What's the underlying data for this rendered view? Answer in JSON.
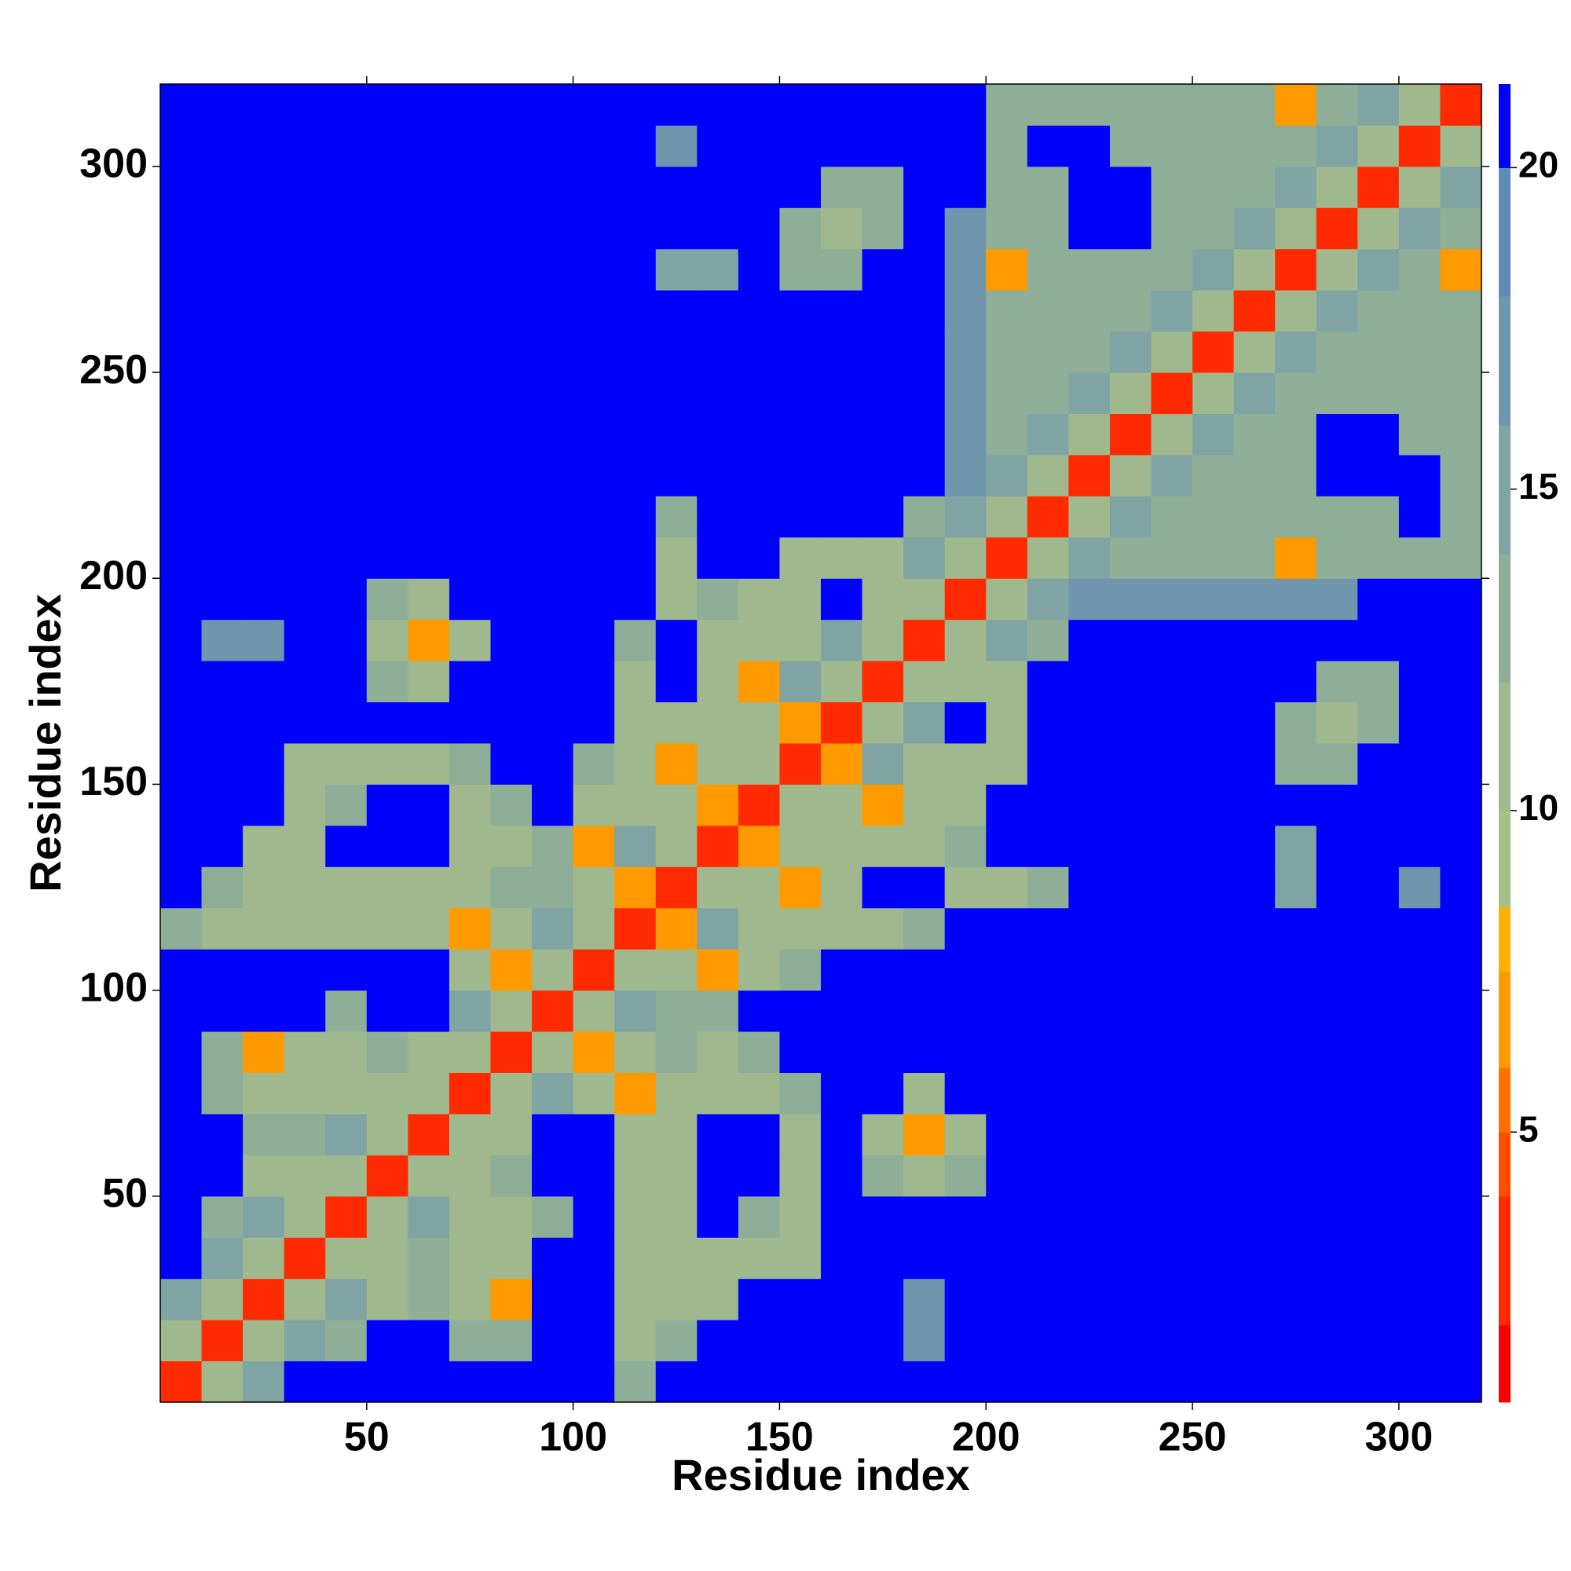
{
  "chart_data": {
    "type": "heatmap",
    "x_label": "Residue index",
    "y_label": "Residue index",
    "x": [
      5,
      15,
      25,
      35,
      45,
      55,
      65,
      75,
      85,
      95,
      105,
      115,
      125,
      135,
      145,
      155,
      165,
      175,
      185,
      195,
      205,
      215,
      225,
      235,
      245,
      255,
      265,
      275,
      285,
      295,
      305,
      315
    ],
    "y": [
      5,
      15,
      25,
      35,
      45,
      55,
      65,
      75,
      85,
      95,
      105,
      115,
      125,
      135,
      145,
      155,
      165,
      175,
      185,
      195,
      205,
      215,
      225,
      235,
      245,
      255,
      265,
      275,
      285,
      295,
      305,
      315
    ],
    "xlim": [
      0,
      320
    ],
    "ylim": [
      0,
      320
    ],
    "xticks": [
      50,
      100,
      150,
      200,
      250,
      300
    ],
    "yticks": [
      50,
      100,
      150,
      200,
      250,
      300
    ],
    "clim": [
      0.8,
      21.3
    ],
    "cticks": [
      5,
      10,
      15,
      20
    ],
    "colorscale": [
      [
        2,
        "#ff0000"
      ],
      [
        4,
        "#ff2a00"
      ],
      [
        5,
        "#ff4d00"
      ],
      [
        6,
        "#ff7000"
      ],
      [
        7.5,
        "#ff9a00"
      ],
      [
        8.5,
        "#ffb000"
      ],
      [
        10,
        "#a8bf8a"
      ],
      [
        12,
        "#a0b88e"
      ],
      [
        14,
        "#8fae98"
      ],
      [
        16,
        "#80a3a4"
      ],
      [
        18,
        "#7096ad"
      ],
      [
        20,
        "#5f8ab6"
      ],
      [
        21.3,
        "#0000ff"
      ]
    ],
    "values": [
      [
        3,
        11,
        16,
        21,
        21,
        21,
        21,
        21,
        21,
        21,
        21,
        14,
        21,
        21,
        21,
        21,
        21,
        21,
        21,
        21,
        21,
        21,
        21,
        21,
        21,
        21,
        21,
        21,
        21,
        21,
        21,
        21
      ],
      [
        11,
        3,
        11,
        16,
        14,
        21,
        21,
        14,
        14,
        21,
        21,
        12,
        14,
        21,
        21,
        21,
        21,
        21,
        18,
        21,
        21,
        21,
        21,
        21,
        21,
        21,
        21,
        21,
        21,
        21,
        21,
        21
      ],
      [
        16,
        11,
        3,
        11,
        16,
        12,
        14,
        12,
        7,
        21,
        21,
        12,
        12,
        12,
        21,
        21,
        21,
        21,
        18,
        21,
        21,
        21,
        21,
        21,
        21,
        21,
        21,
        21,
        21,
        21,
        21,
        21
      ],
      [
        21,
        16,
        11,
        3,
        11,
        12,
        14,
        12,
        12,
        21,
        21,
        12,
        12,
        12,
        12,
        12,
        21,
        21,
        21,
        21,
        21,
        21,
        21,
        21,
        21,
        21,
        21,
        21,
        21,
        21,
        21,
        21
      ],
      [
        21,
        14,
        16,
        11,
        3,
        11,
        16,
        12,
        12,
        14,
        21,
        12,
        12,
        21,
        14,
        12,
        21,
        21,
        21,
        21,
        21,
        21,
        21,
        21,
        21,
        21,
        21,
        21,
        21,
        21,
        21,
        21
      ],
      [
        21,
        21,
        12,
        12,
        11,
        3,
        11,
        12,
        14,
        21,
        21,
        12,
        12,
        21,
        21,
        12,
        21,
        14,
        12,
        14,
        21,
        21,
        21,
        21,
        21,
        21,
        21,
        21,
        21,
        21,
        21,
        21
      ],
      [
        21,
        21,
        14,
        14,
        16,
        11,
        3,
        11,
        12,
        21,
        21,
        12,
        12,
        21,
        21,
        12,
        21,
        12,
        7,
        12,
        21,
        21,
        21,
        21,
        21,
        21,
        21,
        21,
        21,
        21,
        21,
        21
      ],
      [
        21,
        14,
        12,
        12,
        12,
        12,
        11,
        3,
        11,
        16,
        12,
        7,
        12,
        12,
        12,
        14,
        21,
        21,
        12,
        21,
        21,
        21,
        21,
        21,
        21,
        21,
        21,
        21,
        21,
        21,
        21,
        21
      ],
      [
        21,
        14,
        7,
        12,
        12,
        14,
        12,
        11,
        3,
        11,
        7,
        12,
        14,
        12,
        14,
        21,
        21,
        21,
        21,
        21,
        21,
        21,
        21,
        21,
        21,
        21,
        21,
        21,
        21,
        21,
        21,
        21
      ],
      [
        21,
        21,
        21,
        21,
        14,
        21,
        21,
        16,
        11,
        3,
        11,
        16,
        14,
        14,
        21,
        21,
        21,
        21,
        21,
        21,
        21,
        21,
        21,
        21,
        21,
        21,
        21,
        21,
        21,
        21,
        21,
        21
      ],
      [
        21,
        21,
        21,
        21,
        21,
        21,
        21,
        12,
        7,
        11,
        3,
        11,
        12,
        7,
        12,
        14,
        21,
        21,
        21,
        21,
        21,
        21,
        21,
        21,
        21,
        21,
        21,
        21,
        21,
        21,
        21,
        21
      ],
      [
        14,
        12,
        12,
        12,
        12,
        12,
        12,
        7,
        12,
        16,
        11,
        3,
        7,
        16,
        12,
        12,
        12,
        12,
        14,
        21,
        21,
        21,
        21,
        21,
        21,
        21,
        21,
        21,
        21,
        21,
        21,
        21
      ],
      [
        21,
        14,
        12,
        12,
        12,
        12,
        12,
        12,
        14,
        14,
        12,
        7,
        3,
        11,
        12,
        7,
        12,
        21,
        21,
        12,
        12,
        14,
        21,
        21,
        21,
        21,
        21,
        16,
        21,
        21,
        18,
        21
      ],
      [
        21,
        21,
        12,
        12,
        21,
        21,
        21,
        12,
        12,
        14,
        7,
        16,
        11,
        3,
        7,
        12,
        12,
        12,
        12,
        14,
        21,
        21,
        21,
        21,
        21,
        21,
        21,
        16,
        21,
        21,
        21,
        21
      ],
      [
        21,
        21,
        21,
        12,
        14,
        21,
        21,
        12,
        14,
        21,
        12,
        12,
        12,
        7,
        3,
        11,
        12,
        7,
        12,
        12,
        21,
        21,
        21,
        21,
        21,
        21,
        21,
        21,
        21,
        21,
        21,
        21
      ],
      [
        21,
        21,
        21,
        12,
        12,
        12,
        12,
        14,
        21,
        21,
        14,
        12,
        7,
        12,
        11,
        3,
        7,
        16,
        12,
        12,
        12,
        21,
        21,
        21,
        21,
        21,
        21,
        14,
        14,
        21,
        21,
        21
      ],
      [
        21,
        21,
        21,
        21,
        21,
        21,
        21,
        21,
        21,
        21,
        21,
        12,
        12,
        12,
        12,
        7,
        3,
        11,
        16,
        21,
        12,
        21,
        21,
        21,
        21,
        21,
        21,
        14,
        12,
        14,
        21,
        21
      ],
      [
        21,
        21,
        21,
        21,
        21,
        14,
        12,
        21,
        21,
        21,
        21,
        12,
        21,
        12,
        7,
        16,
        11,
        3,
        11,
        12,
        12,
        21,
        21,
        21,
        21,
        21,
        21,
        21,
        14,
        14,
        21,
        21
      ],
      [
        21,
        18,
        18,
        21,
        21,
        12,
        7,
        12,
        21,
        21,
        21,
        14,
        21,
        12,
        12,
        12,
        16,
        11,
        3,
        11,
        16,
        14,
        21,
        21,
        21,
        21,
        21,
        21,
        21,
        21,
        21,
        21
      ],
      [
        21,
        21,
        21,
        21,
        21,
        14,
        12,
        21,
        21,
        21,
        21,
        21,
        12,
        14,
        12,
        12,
        21,
        12,
        11,
        3,
        11,
        16,
        18,
        18,
        18,
        18,
        18,
        18,
        18,
        21,
        21,
        21
      ],
      [
        21,
        21,
        21,
        21,
        21,
        21,
        21,
        21,
        21,
        21,
        21,
        21,
        12,
        21,
        21,
        12,
        12,
        12,
        16,
        11,
        3,
        11,
        16,
        14,
        14,
        14,
        14,
        7,
        14,
        14,
        14,
        14
      ],
      [
        21,
        21,
        21,
        21,
        21,
        21,
        21,
        21,
        21,
        21,
        21,
        21,
        14,
        21,
        21,
        21,
        21,
        21,
        14,
        16,
        11,
        3,
        11,
        16,
        14,
        14,
        14,
        14,
        14,
        14,
        21,
        14
      ],
      [
        21,
        21,
        21,
        21,
        21,
        21,
        21,
        21,
        21,
        21,
        21,
        21,
        21,
        21,
        21,
        21,
        21,
        21,
        21,
        18,
        16,
        11,
        3,
        11,
        16,
        14,
        14,
        14,
        21,
        21,
        21,
        14
      ],
      [
        21,
        21,
        21,
        21,
        21,
        21,
        21,
        21,
        21,
        21,
        21,
        21,
        21,
        21,
        21,
        21,
        21,
        21,
        21,
        18,
        14,
        16,
        11,
        3,
        11,
        16,
        14,
        14,
        21,
        21,
        14,
        14
      ],
      [
        21,
        21,
        21,
        21,
        21,
        21,
        21,
        21,
        21,
        21,
        21,
        21,
        21,
        21,
        21,
        21,
        21,
        21,
        21,
        18,
        14,
        14,
        16,
        11,
        3,
        11,
        16,
        14,
        14,
        14,
        14,
        14
      ],
      [
        21,
        21,
        21,
        21,
        21,
        21,
        21,
        21,
        21,
        21,
        21,
        21,
        21,
        21,
        21,
        21,
        21,
        21,
        21,
        18,
        14,
        14,
        14,
        16,
        11,
        3,
        11,
        16,
        14,
        14,
        14,
        14
      ],
      [
        21,
        21,
        21,
        21,
        21,
        21,
        21,
        21,
        21,
        21,
        21,
        21,
        21,
        21,
        21,
        21,
        21,
        21,
        21,
        18,
        14,
        14,
        14,
        14,
        16,
        11,
        3,
        11,
        16,
        14,
        14,
        14
      ],
      [
        21,
        21,
        21,
        21,
        21,
        21,
        21,
        21,
        21,
        21,
        21,
        21,
        16,
        16,
        21,
        14,
        14,
        21,
        21,
        18,
        7,
        14,
        14,
        14,
        14,
        16,
        11,
        3,
        11,
        16,
        14,
        7
      ],
      [
        21,
        21,
        21,
        21,
        21,
        21,
        21,
        21,
        21,
        21,
        21,
        21,
        21,
        21,
        21,
        14,
        12,
        14,
        21,
        18,
        14,
        14,
        21,
        21,
        14,
        14,
        16,
        11,
        3,
        11,
        16,
        14
      ],
      [
        21,
        21,
        21,
        21,
        21,
        21,
        21,
        21,
        21,
        21,
        21,
        21,
        21,
        21,
        21,
        21,
        14,
        14,
        21,
        21,
        14,
        14,
        21,
        21,
        14,
        14,
        14,
        16,
        11,
        3,
        11,
        16
      ],
      [
        21,
        21,
        21,
        21,
        21,
        21,
        21,
        21,
        21,
        21,
        21,
        21,
        18,
        21,
        21,
        21,
        21,
        21,
        21,
        21,
        14,
        21,
        21,
        14,
        14,
        14,
        14,
        14,
        16,
        11,
        3,
        11
      ],
      [
        21,
        21,
        21,
        21,
        21,
        21,
        21,
        21,
        21,
        21,
        21,
        21,
        21,
        21,
        21,
        21,
        21,
        21,
        21,
        21,
        14,
        14,
        14,
        14,
        14,
        14,
        14,
        7,
        14,
        16,
        11,
        3
      ]
    ]
  }
}
